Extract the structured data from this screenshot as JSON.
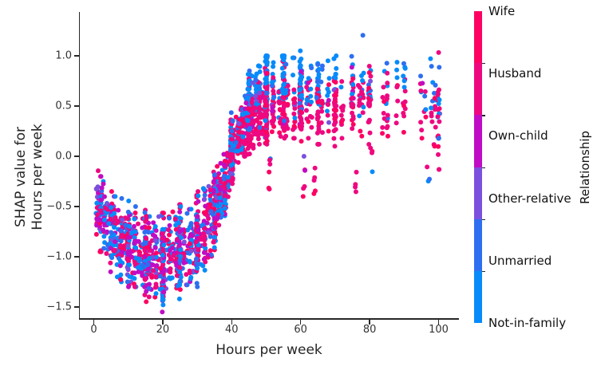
{
  "chart_data": {
    "type": "scatter",
    "title": "",
    "xlabel": "Hours per week",
    "ylabel_line1": "SHAP value for",
    "ylabel_line2": "Hours per week",
    "x_axis": {
      "ticks": [
        0,
        20,
        40,
        60,
        80,
        100
      ],
      "tick_labels": [
        "0",
        "20",
        "40",
        "60",
        "80",
        "100"
      ],
      "range": [
        -4,
        106
      ]
    },
    "y_axis": {
      "ticks": [
        1.0,
        0.5,
        0.0,
        -0.5,
        -1.0,
        -1.5
      ],
      "tick_labels": [
        "1.0",
        "0.5",
        "0.0",
        "−0.5",
        "−1.0",
        "−1.5"
      ],
      "range": [
        -1.6,
        1.45
      ]
    },
    "grid": false,
    "legend_position": "colorbar-right",
    "colorbar": {
      "title": "Relationship",
      "categories": [
        {
          "label": "Wife",
          "color": "#fd0262"
        },
        {
          "label": "Husband",
          "color": "#ee0880"
        },
        {
          "label": "Own-child",
          "color": "#c00cc4"
        },
        {
          "label": "Other-relative",
          "color": "#7b50de"
        },
        {
          "label": "Unmarried",
          "color": "#2e6ff2"
        },
        {
          "label": "Not-in-family",
          "color": "#078bfb"
        }
      ]
    },
    "scatter": {
      "point_radius": 3,
      "seed": 42,
      "category_mix": [
        {
          "max_h": 24,
          "weights": [
            0.13,
            0.2,
            0.27,
            0.05,
            0.11,
            0.24
          ]
        },
        {
          "max_h": 38,
          "weights": [
            0.14,
            0.25,
            0.19,
            0.04,
            0.12,
            0.26
          ]
        },
        {
          "max_h": 47,
          "weights": [
            0.17,
            0.4,
            0.06,
            0.03,
            0.11,
            0.23
          ]
        },
        {
          "max_h": 200,
          "weights": [
            0.15,
            0.44,
            0.02,
            0.02,
            0.11,
            0.26
          ]
        }
      ],
      "high_hours_bias": {
        "min_h": 44,
        "bias": [
          -0.06,
          -0.05,
          0.02,
          0.05,
          0.1,
          0.13
        ]
      },
      "stripes": [
        [
          1,
          25,
          -0.45,
          0.18,
          -0.85,
          -0.13
        ],
        [
          2,
          30,
          -0.55,
          0.18,
          -0.95,
          -0.2
        ],
        [
          3,
          25,
          -0.62,
          0.18,
          -1.0,
          -0.25
        ],
        [
          4,
          18,
          -0.68,
          0.18,
          -1.05,
          -0.3
        ],
        [
          5,
          35,
          -0.75,
          0.2,
          -1.15,
          -0.35
        ],
        [
          6,
          22,
          -0.78,
          0.18,
          -1.15,
          -0.4
        ],
        [
          7,
          18,
          -0.8,
          0.18,
          -1.2,
          -0.42
        ],
        [
          8,
          40,
          -0.84,
          0.2,
          -1.25,
          -0.42
        ],
        [
          9,
          12,
          -0.85,
          0.18,
          -1.2,
          -0.45
        ],
        [
          10,
          55,
          -0.88,
          0.22,
          -1.3,
          -0.42
        ],
        [
          11,
          10,
          -0.9,
          0.18,
          -1.25,
          -0.5
        ],
        [
          12,
          38,
          -0.92,
          0.2,
          -1.3,
          -0.5
        ],
        [
          13,
          14,
          -0.94,
          0.18,
          -1.3,
          -0.52
        ],
        [
          14,
          18,
          -0.95,
          0.2,
          -1.32,
          -0.52
        ],
        [
          15,
          60,
          -0.98,
          0.22,
          -1.45,
          -0.5
        ],
        [
          16,
          32,
          -1.0,
          0.2,
          -1.4,
          -0.55
        ],
        [
          17,
          18,
          -1.02,
          0.2,
          -1.42,
          -0.58
        ],
        [
          18,
          28,
          -1.02,
          0.2,
          -1.42,
          -0.58
        ],
        [
          19,
          10,
          -1.04,
          0.18,
          -1.4,
          -0.6
        ],
        [
          20,
          90,
          -1.05,
          0.24,
          -1.55,
          -0.5
        ],
        [
          21,
          8,
          -1.02,
          0.18,
          -1.35,
          -0.6
        ],
        [
          22,
          24,
          -1.0,
          0.2,
          -1.38,
          -0.55
        ],
        [
          23,
          10,
          -0.98,
          0.18,
          -1.35,
          -0.55
        ],
        [
          24,
          28,
          -0.96,
          0.2,
          -1.35,
          -0.52
        ],
        [
          25,
          70,
          -0.95,
          0.22,
          -1.42,
          -0.48
        ],
        [
          26,
          14,
          -0.92,
          0.18,
          -1.3,
          -0.5
        ],
        [
          27,
          10,
          -0.9,
          0.18,
          -1.28,
          -0.48
        ],
        [
          28,
          30,
          -0.87,
          0.2,
          -1.28,
          -0.45
        ],
        [
          29,
          8,
          -0.85,
          0.18,
          -1.25,
          -0.45
        ],
        [
          30,
          80,
          -0.82,
          0.22,
          -1.3,
          -0.35
        ],
        [
          31,
          8,
          -0.76,
          0.18,
          -1.15,
          -0.38
        ],
        [
          32,
          34,
          -0.72,
          0.2,
          -1.15,
          -0.32
        ],
        [
          33,
          14,
          -0.66,
          0.18,
          -1.05,
          -0.3
        ],
        [
          34,
          18,
          -0.6,
          0.18,
          -1.0,
          -0.25
        ],
        [
          35,
          70,
          -0.52,
          0.2,
          -0.95,
          -0.12
        ],
        [
          36,
          24,
          -0.44,
          0.16,
          -0.8,
          -0.1
        ],
        [
          37,
          24,
          -0.36,
          0.16,
          -0.72,
          -0.05
        ],
        [
          38,
          45,
          -0.26,
          0.16,
          -0.6,
          0.02
        ],
        [
          39,
          18,
          -0.16,
          0.14,
          -0.45,
          0.1
        ],
        [
          40,
          120,
          0.05,
          0.15,
          -0.28,
          0.45
        ],
        [
          41,
          14,
          0.12,
          0.12,
          -0.15,
          0.4
        ],
        [
          42,
          40,
          0.18,
          0.13,
          -0.1,
          0.48
        ],
        [
          43,
          28,
          0.25,
          0.13,
          -0.05,
          0.52
        ],
        [
          44,
          28,
          0.3,
          0.14,
          0.0,
          0.6
        ],
        [
          45,
          90,
          0.38,
          0.17,
          0.02,
          0.85
        ],
        [
          46,
          24,
          0.42,
          0.15,
          0.08,
          0.8
        ],
        [
          47,
          24,
          0.45,
          0.15,
          0.1,
          0.82
        ],
        [
          48,
          50,
          0.48,
          0.16,
          0.12,
          0.9
        ],
        [
          49,
          14,
          0.5,
          0.15,
          0.15,
          0.88
        ],
        [
          50,
          110,
          0.52,
          0.19,
          0.12,
          1.0
        ],
        [
          51,
          6,
          -0.1,
          0.15,
          -0.35,
          0.1
        ],
        [
          52,
          30,
          0.52,
          0.17,
          0.15,
          0.95
        ],
        [
          54,
          18,
          0.54,
          0.16,
          0.18,
          0.95
        ],
        [
          55,
          60,
          0.55,
          0.18,
          0.18,
          1.0
        ],
        [
          56,
          18,
          0.55,
          0.16,
          0.2,
          0.95
        ],
        [
          58,
          24,
          0.55,
          0.17,
          0.18,
          0.98
        ],
        [
          60,
          90,
          0.55,
          0.19,
          0.15,
          1.05
        ],
        [
          61,
          6,
          -0.2,
          0.15,
          -0.45,
          0.0
        ],
        [
          62,
          14,
          0.52,
          0.16,
          0.18,
          0.92
        ],
        [
          63,
          10,
          0.52,
          0.15,
          0.2,
          0.9
        ],
        [
          64,
          5,
          -0.3,
          0.12,
          -0.5,
          -0.1
        ],
        [
          65,
          45,
          0.53,
          0.18,
          0.12,
          0.95
        ],
        [
          66,
          10,
          0.52,
          0.15,
          0.2,
          0.9
        ],
        [
          68,
          14,
          0.55,
          0.16,
          0.2,
          0.95
        ],
        [
          70,
          45,
          0.55,
          0.19,
          0.1,
          1.1
        ],
        [
          72,
          12,
          0.52,
          0.16,
          0.18,
          0.92
        ],
        [
          75,
          30,
          0.55,
          0.18,
          0.12,
          1.0
        ],
        [
          76,
          4,
          -0.25,
          0.12,
          -0.45,
          -0.05
        ],
        [
          77,
          8,
          0.58,
          0.16,
          0.25,
          0.95
        ],
        [
          78,
          14,
          0.6,
          0.2,
          0.2,
          1.32
        ],
        [
          80,
          30,
          0.55,
          0.22,
          -0.05,
          1.28
        ],
        [
          81,
          3,
          -0.1,
          0.1,
          -0.25,
          0.05
        ],
        [
          84,
          8,
          0.55,
          0.16,
          0.2,
          0.95
        ],
        [
          85,
          14,
          0.6,
          0.18,
          0.2,
          1.12
        ],
        [
          88,
          8,
          0.55,
          0.16,
          0.2,
          0.95
        ],
        [
          90,
          15,
          0.55,
          0.18,
          0.2,
          1.1
        ],
        [
          95,
          8,
          0.55,
          0.17,
          0.15,
          1.0
        ],
        [
          96,
          6,
          0.55,
          0.15,
          0.2,
          0.92
        ],
        [
          97,
          3,
          -0.2,
          0.1,
          -0.35,
          -0.05
        ],
        [
          98,
          8,
          0.6,
          0.25,
          0.2,
          1.26
        ],
        [
          99,
          10,
          0.45,
          0.18,
          0.1,
          0.85
        ],
        [
          100,
          25,
          0.45,
          0.3,
          -0.25,
          1.25
        ]
      ]
    }
  }
}
